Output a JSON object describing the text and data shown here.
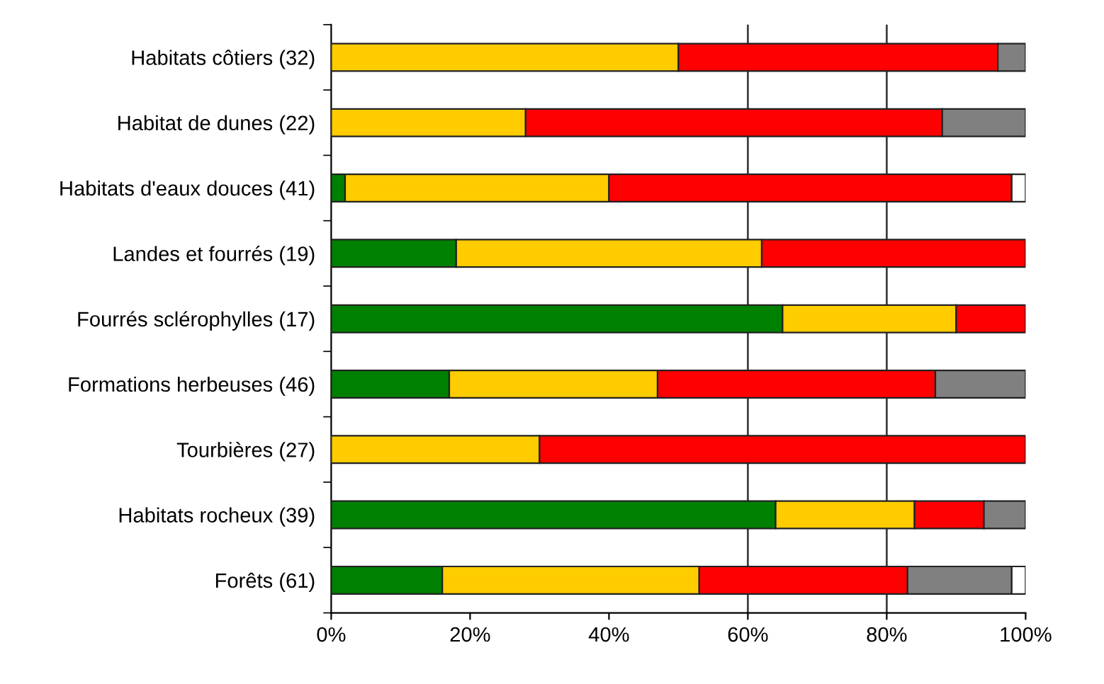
{
  "chart_data": {
    "type": "bar",
    "orientation": "horizontal",
    "stacked": true,
    "categories": [
      "Habitats côtiers (32)",
      "Habitat de dunes (22)",
      "Habitats d'eaux douces (41)",
      "Landes et fourrés (19)",
      "Fourrés sclérophylles (17)",
      "Formations herbeuses (46)",
      "Tourbières (27)",
      "Habitats rocheux (39)",
      "Forêts (61)"
    ],
    "series": [
      {
        "color": "#008000",
        "values": [
          null,
          null,
          2,
          18,
          65,
          17,
          null,
          64,
          16
        ]
      },
      {
        "color": "#ffcc00",
        "values": [
          50,
          28,
          38,
          44,
          25,
          30,
          30,
          20,
          37
        ]
      },
      {
        "color": "#ff0000",
        "values": [
          46,
          60,
          58,
          38,
          10,
          40,
          70,
          10,
          30
        ]
      },
      {
        "color": "#808080",
        "values": [
          4,
          12,
          null,
          null,
          null,
          13,
          null,
          6,
          15
        ]
      },
      {
        "color": "#ffffff",
        "values": [
          null,
          null,
          2,
          null,
          null,
          null,
          null,
          null,
          2
        ]
      }
    ],
    "xlim": [
      0,
      100
    ],
    "xticks": [
      {
        "value": 0,
        "label": "0%"
      },
      {
        "value": 20,
        "label": "20%"
      },
      {
        "value": 40,
        "label": "40%"
      },
      {
        "value": 60,
        "label": "60%"
      },
      {
        "value": 80,
        "label": "80%"
      },
      {
        "value": 100,
        "label": "100%"
      }
    ],
    "ref_lines": [
      {
        "axis": "x",
        "value": 60,
        "color": "#404040"
      },
      {
        "axis": "x",
        "value": 80,
        "color": "#404040"
      }
    ],
    "grid": false,
    "legend": false
  }
}
